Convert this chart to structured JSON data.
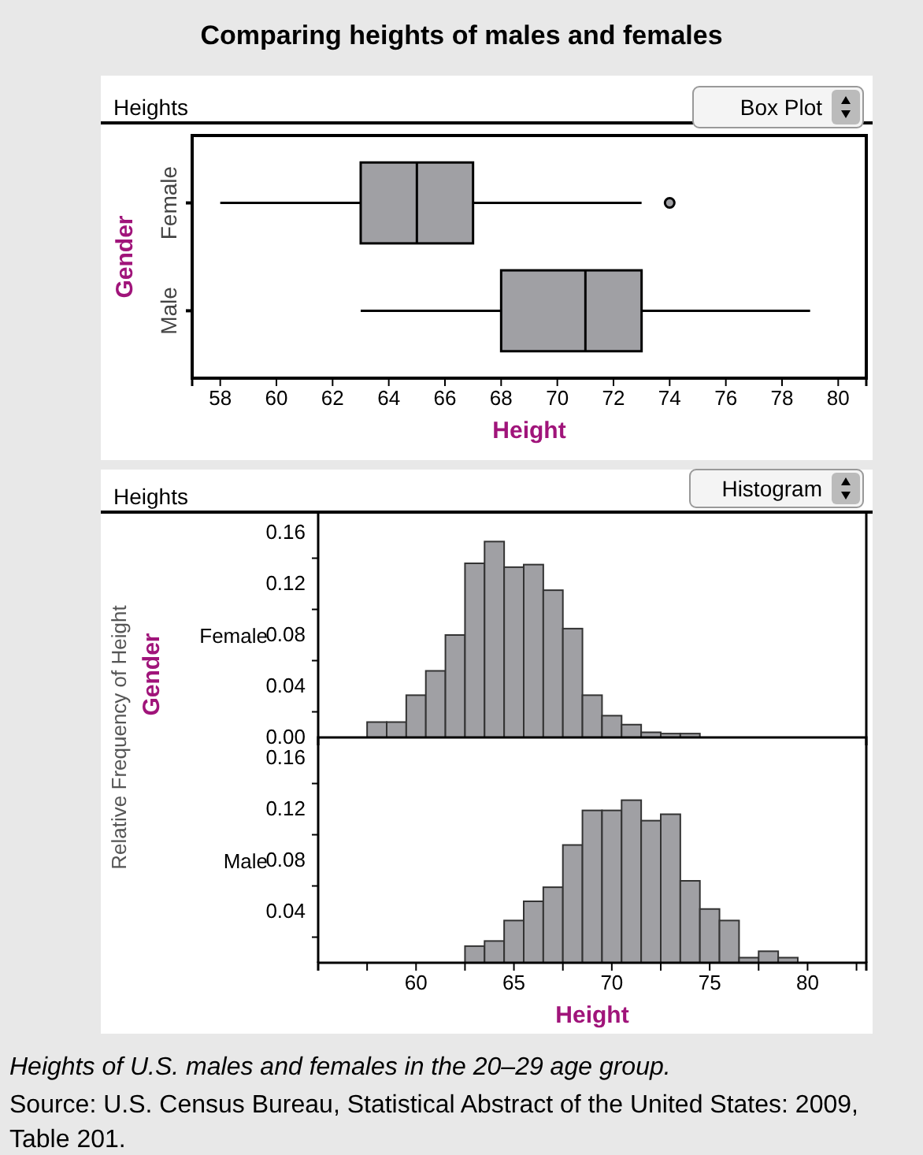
{
  "chart_data": [
    {
      "type": "box",
      "title": "Comparing heights of males and females",
      "subtitle": "Heights",
      "annotations": [
        "Box Plot"
      ],
      "orientation": "horizontal",
      "categories": [
        "Female",
        "Male"
      ],
      "xlabel": "Height",
      "ylabel": "Gender",
      "color": "#a0a0a4",
      "boxes": [
        {
          "low": 58,
          "q1": 63,
          "median": 65,
          "q3": 67,
          "high": 73,
          "outliers": [
            74
          ]
        },
        {
          "low": 63,
          "q1": 68,
          "median": 71,
          "q3": 73,
          "high": 79
        }
      ],
      "xlim": [
        57,
        81
      ],
      "xticks": [
        58,
        60,
        62,
        64,
        66,
        68,
        70,
        72,
        74,
        76,
        78,
        80
      ]
    },
    {
      "type": "histogram",
      "subtitle": "Heights",
      "annotations": [
        "Histogram"
      ],
      "ylabel": "Relative Frequency of Height",
      "legend_title": "Gender",
      "bins": [
        57.5,
        58.5,
        59.5,
        60.5,
        61.5,
        62.5,
        63.5,
        64.5,
        65.5,
        66.5,
        67.5,
        68.5,
        69.5,
        70.5,
        71.5,
        72.5,
        73.5,
        74.5
      ],
      "series": [
        {
          "name": "Female",
          "color": "#a0a0a4",
          "values": [
            0.012,
            0.012,
            0.033,
            0.052,
            0.08,
            0.136,
            0.153,
            0.133,
            0.135,
            0.115,
            0.085,
            0.033,
            0.017,
            0.01,
            0.004,
            0.003,
            0.003
          ]
        }
      ],
      "xlim": [
        55,
        83
      ],
      "ylim": [
        0,
        0.176
      ],
      "yticks": [
        {
          "value": 0,
          "label": "0.00"
        },
        {
          "value": 0.02,
          "label": null
        },
        {
          "value": 0.04,
          "label": "0.04"
        },
        {
          "value": 0.06,
          "label": null
        },
        {
          "value": 0.08,
          "label": "0.08"
        },
        {
          "value": 0.1,
          "label": null
        },
        {
          "value": 0.12,
          "label": "0.12"
        },
        {
          "value": 0.14,
          "label": null
        },
        {
          "value": 0.16,
          "label": "0.16"
        }
      ],
      "tick_labels": "y"
    },
    {
      "type": "histogram",
      "xlabel": "Height",
      "annotations": [
        "Heights of U.S. males and females in the 20–29 age group.",
        "Source: U.S. Census Bureau, Statistical Abstract of the United States: 2009, Table 201."
      ],
      "bins": [
        62.5,
        63.5,
        64.5,
        65.5,
        66.5,
        67.5,
        68.5,
        69.5,
        70.5,
        71.5,
        72.5,
        73.5,
        74.5,
        75.5,
        76.5,
        77.5,
        78.5,
        79.5
      ],
      "series": [
        {
          "name": "Male",
          "color": "#a0a0a4",
          "values": [
            0.013,
            0.017,
            0.033,
            0.048,
            0.059,
            0.092,
            0.119,
            0.119,
            0.127,
            0.111,
            0.116,
            0.064,
            0.042,
            0.033,
            0.004,
            0.009,
            0.004
          ]
        }
      ],
      "xlim": [
        55,
        83
      ],
      "ylim": [
        0,
        0.176
      ],
      "xticks": [
        {
          "value": 55,
          "label": null
        },
        {
          "value": 57.5,
          "label": null
        },
        60,
        {
          "value": 62.5,
          "label": null
        },
        65,
        {
          "value": 67.5,
          "label": null
        },
        70,
        {
          "value": 72.5,
          "label": null
        },
        75,
        {
          "value": 77.5,
          "label": null
        },
        80,
        {
          "value": 82.5,
          "label": null
        }
      ],
      "yticks": [
        {
          "value": 0.02,
          "label": null
        },
        {
          "value": 0.04,
          "label": "0.04"
        },
        {
          "value": 0.06,
          "label": null
        },
        {
          "value": 0.08,
          "label": "0.08"
        },
        {
          "value": 0.1,
          "label": null
        },
        {
          "value": 0.12,
          "label": "0.12"
        },
        {
          "value": 0.14,
          "label": null
        },
        {
          "value": 0.16,
          "label": "0.16"
        }
      ]
    }
  ]
}
